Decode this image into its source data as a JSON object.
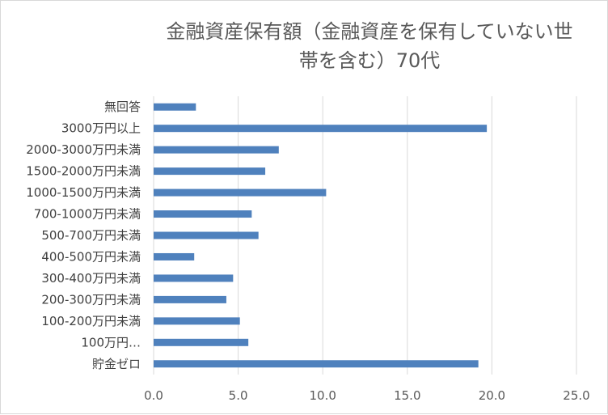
{
  "chart_data": {
    "type": "bar",
    "orientation": "horizontal",
    "title": "金融資産保有額（金融資産を保有していない世帯を含む）70代",
    "title_lines": [
      "金融資産保有額（金融資産を保有していない世",
      "帯を含む）70代"
    ],
    "categories": [
      "無回答",
      "3000万円以上",
      "2000-3000万円未満",
      "1500-2000万円未満",
      "1000-1500万円未満",
      "700-1000万円未満",
      "500-700万円未満",
      "400-500万円未満",
      "300-400万円未満",
      "200-300万円未満",
      "100-200万円未満",
      "100万円…",
      "貯金ゼロ"
    ],
    "values": [
      2.5,
      19.7,
      7.4,
      6.6,
      10.2,
      5.8,
      6.2,
      2.4,
      4.7,
      4.3,
      5.1,
      5.6,
      19.2
    ],
    "xlim": [
      0,
      25
    ],
    "xticks": [
      "0.0",
      "5.0",
      "10.0",
      "15.0",
      "20.0",
      "25.0"
    ],
    "xtick_values": [
      0,
      5,
      10,
      15,
      20,
      25
    ],
    "xlabel": "",
    "ylabel": "",
    "grid": true,
    "legend": "none",
    "bar_color": "#4f81bd",
    "grid_color": "#d9d9d9"
  }
}
